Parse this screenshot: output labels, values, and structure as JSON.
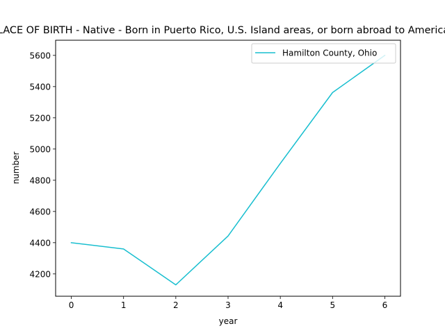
{
  "chart_data": {
    "type": "line",
    "title": "Estimate; PLACE OF BIRTH - Native - Born in Puerto Rico, U.S. Island areas, or born abroad to American parent(s)",
    "xlabel": "year",
    "ylabel": "number",
    "x": [
      0,
      1,
      2,
      3,
      4,
      5,
      6
    ],
    "xticks": [
      "0",
      "1",
      "2",
      "3",
      "4",
      "5",
      "6"
    ],
    "xlim": [
      -0.3,
      6.3
    ],
    "yticks": [
      "4200",
      "4400",
      "4600",
      "4800",
      "5000",
      "5200",
      "5400",
      "5600"
    ],
    "ylim": [
      4057,
      5697
    ],
    "series": [
      {
        "name": "Hamilton County, Ohio",
        "color": "#17becf",
        "values": [
          4400,
          4360,
          4130,
          4443,
          4908,
          5362,
          5600
        ]
      }
    ],
    "grid": false,
    "legend": "top-right"
  }
}
